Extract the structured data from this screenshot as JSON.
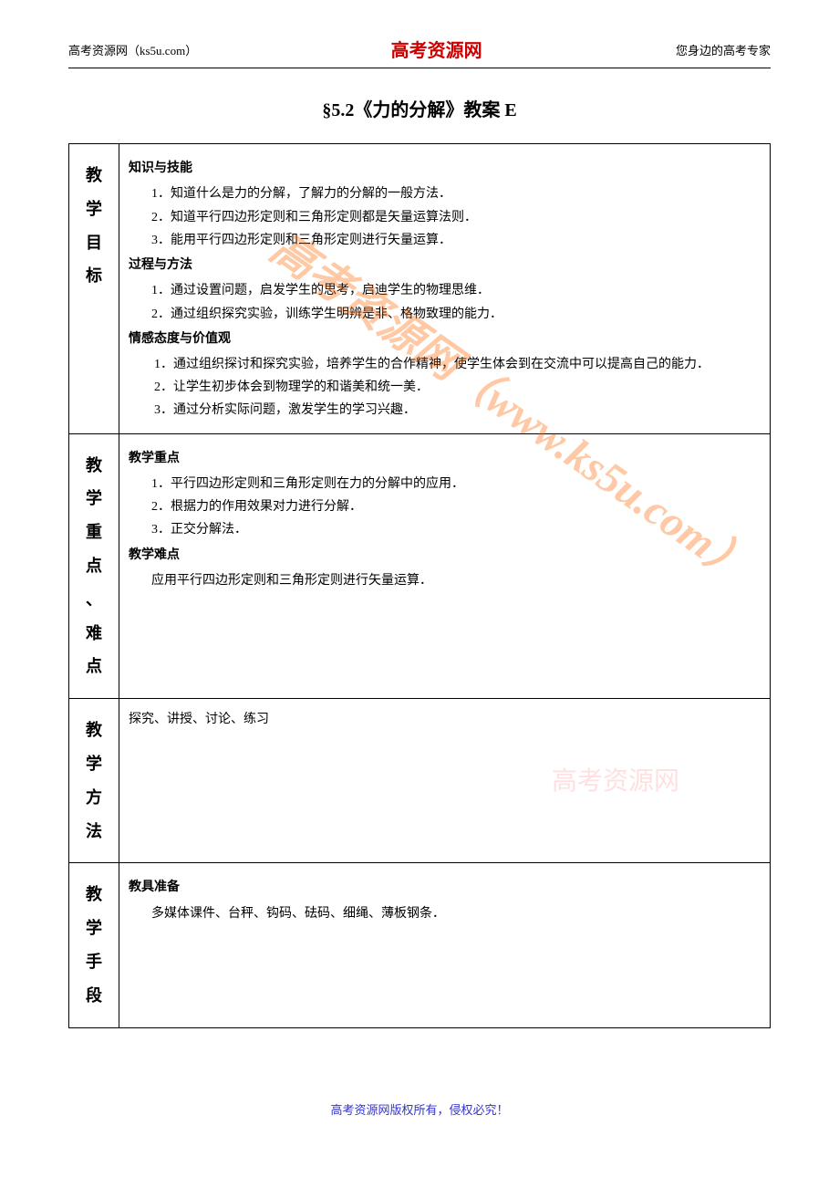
{
  "header": {
    "left": "高考资源网（ks5u.com）",
    "center": "高考资源网",
    "right": "您身边的高考专家"
  },
  "title": "§5.2《力的分解》教案 E",
  "sections": [
    {
      "label": [
        "教",
        "学",
        "目",
        "标"
      ],
      "groups": [
        {
          "title": "知识与技能",
          "items": [
            "1．知道什么是力的分解，了解力的分解的一般方法．",
            "2．知道平行四边形定则和三角形定则都是矢量运算法则．",
            "3．能用平行四边形定则和三角形定则进行矢量运算．"
          ]
        },
        {
          "title": "过程与方法",
          "items": [
            "1．通过设置问题，启发学生的思考，启迪学生的物理思维．",
            "2．通过组织探究实验，训练学生明辨是非、格物致理的能力．"
          ]
        },
        {
          "title": "情感态度与价值观",
          "items_wrap": [
            "　　1．通过组织探讨和探究实验，培养学生的合作精神，使学生体会到在交流中可以提高自己的能力．",
            "　　2．让学生初步体会到物理学的和谐美和统一美．",
            "　　3．通过分析实际问题，激发学生的学习兴趣．"
          ]
        }
      ]
    },
    {
      "label": [
        "教",
        "学",
        "重",
        "点",
        "、",
        "难",
        "点"
      ],
      "groups": [
        {
          "title": "教学重点",
          "items": [
            "1．平行四边形定则和三角形定则在力的分解中的应用．",
            "2．根据力的作用效果对力进行分解．",
            "3．正交分解法．"
          ]
        },
        {
          "title": "教学难点",
          "items": [
            "应用平行四边形定则和三角形定则进行矢量运算．"
          ]
        }
      ]
    },
    {
      "label": [
        "教",
        "学",
        "方",
        "法"
      ],
      "single": "探究、讲授、讨论、练习"
    },
    {
      "label": [
        "教",
        "学",
        "手",
        "段"
      ],
      "groups": [
        {
          "title": "教具准备",
          "items": [
            "多媒体课件、台秤、钩码、砝码、细绳、薄板钢条．"
          ]
        }
      ]
    }
  ],
  "watermark_main": "高考资源网（www.ks5u.com）",
  "watermark_small": "高考资源网",
  "footer": "高考资源网版权所有，侵权必究！",
  "colors": {
    "header_brand": "#cc0000",
    "footer_text": "#3333cc",
    "watermark": "#ff6600",
    "border": "#000000"
  }
}
